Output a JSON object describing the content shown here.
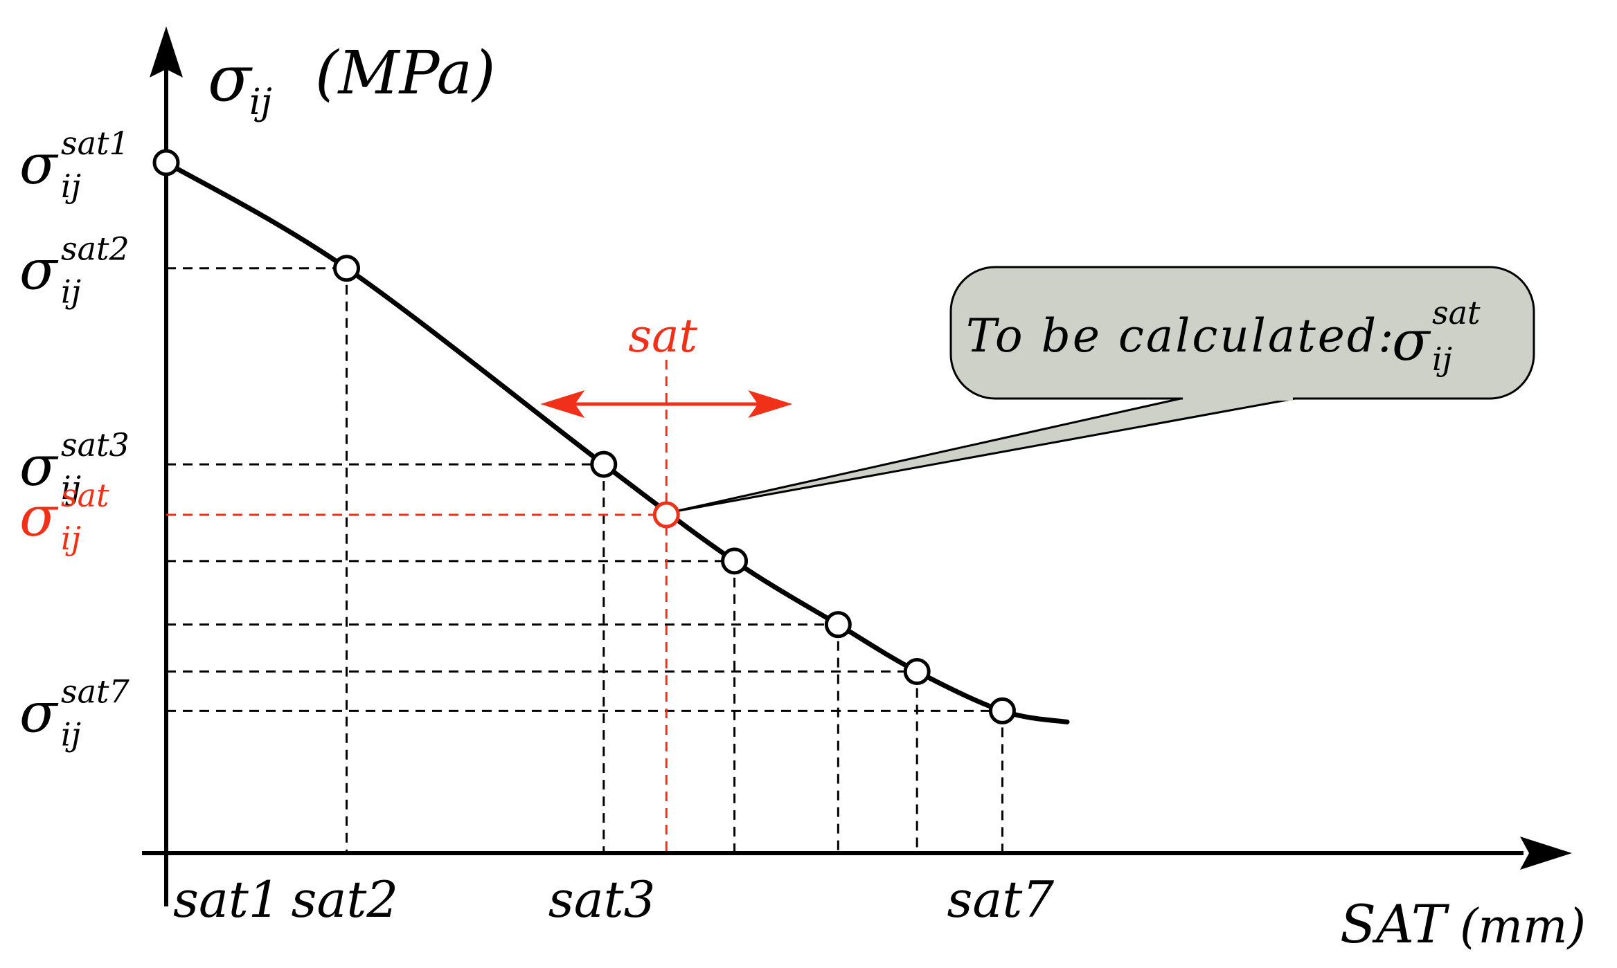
{
  "axes": {
    "y_symbol": "σ",
    "y_subscript": "ij",
    "y_unit": "(MPa)",
    "x_label": "SAT",
    "x_unit": "(mm)"
  },
  "sample_points": [
    {
      "id": "sat1",
      "x_label": "sat1",
      "y_label": "sat1",
      "s": 0.0,
      "stress": 1.0
    },
    {
      "id": "sat2",
      "x_label": "sat2",
      "y_label": "sat2",
      "s": 0.167,
      "stress": 0.847
    },
    {
      "id": "sat3",
      "x_label": "sat3",
      "y_label": "sat3",
      "s": 0.405,
      "stress": 0.563
    },
    {
      "id": "sat4",
      "x_label": "",
      "y_label": "",
      "s": 0.526,
      "stress": 0.423
    },
    {
      "id": "sat5",
      "x_label": "",
      "y_label": "",
      "s": 0.622,
      "stress": 0.331
    },
    {
      "id": "sat6",
      "x_label": "",
      "y_label": "",
      "s": 0.695,
      "stress": 0.263
    },
    {
      "id": "sat7",
      "x_label": "sat7",
      "y_label": "sat7",
      "s": 0.774,
      "stress": 0.206
    }
  ],
  "curve_end": {
    "s": 0.834,
    "stress": 0.19
  },
  "target": {
    "x_label": "sat",
    "y_label": "sat",
    "s": 0.463,
    "stress": 0.49
  },
  "callout": {
    "text": "To be calculated:",
    "symbol": "σ",
    "subscript": "ij",
    "superscript": "sat"
  },
  "colors": {
    "line": "#000000",
    "highlight": "#f03018",
    "callout_fill": "#cdd1c8",
    "marker_fill": "#ffffff"
  }
}
